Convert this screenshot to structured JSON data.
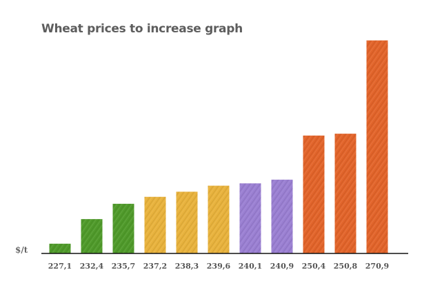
{
  "chart_data": {
    "type": "bar",
    "title": "Wheat prices to increase graph",
    "ylabel": "$/t",
    "xlabel": "",
    "categories": [
      "227,1",
      "232,4",
      "235,7",
      "237,2",
      "238,3",
      "239,6",
      "240,1",
      "240,9",
      "250,4",
      "250,8",
      "270,9"
    ],
    "values": [
      227.1,
      232.4,
      235.7,
      237.2,
      238.3,
      239.6,
      240.1,
      240.9,
      250.4,
      250.8,
      270.9
    ],
    "ylim": [
      225,
      271
    ],
    "grid": false,
    "colors": [
      "#4f9a2a",
      "#4f9a2a",
      "#4f9a2a",
      "#e8b23c",
      "#e8b23c",
      "#e8b23c",
      "#9a7fd2",
      "#9a7fd2",
      "#e2642a",
      "#e2642a",
      "#e2642a"
    ]
  }
}
